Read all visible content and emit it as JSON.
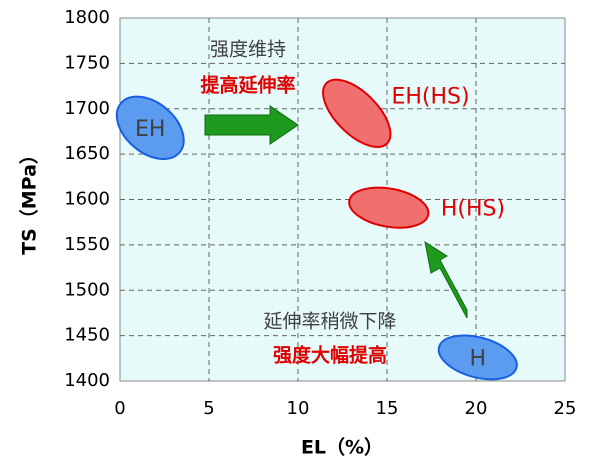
{
  "chart_data": {
    "type": "ellipse",
    "x_label": "EL（%）",
    "y_label": "TS（MPa）",
    "xlim": [
      0,
      25
    ],
    "xticks": [
      0,
      5,
      10,
      15,
      20,
      25
    ],
    "ylim": [
      1400,
      1800
    ],
    "yticks": [
      1400,
      1450,
      1500,
      1550,
      1600,
      1650,
      1700,
      1750,
      1800
    ],
    "grid": true,
    "background": "#e6fafa",
    "series": [
      {
        "name": "EH",
        "color": "#5b9bf0",
        "label_color": "#404040",
        "label_position": "center",
        "x": 1.7,
        "y": 1679,
        "width": 4.3,
        "height": 55,
        "angle": 40
      },
      {
        "name": "EH(HS)",
        "color": "#f07070",
        "label_color": "#e00000",
        "label_position": "upper-right",
        "x": 13.3,
        "y": 1695,
        "width": 4.8,
        "height": 46,
        "angle": 45
      },
      {
        "name": "H(HS)",
        "color": "#f07070",
        "label_color": "#e00000",
        "label_position": "right",
        "x": 15.1,
        "y": 1591,
        "width": 4.5,
        "height": 42,
        "angle": 10
      },
      {
        "name": "H",
        "color": "#5b9bf0",
        "label_color": "#404040",
        "label_position": "center",
        "x": 20.1,
        "y": 1426,
        "width": 4.5,
        "height": 44,
        "angle": 15
      }
    ],
    "annotations": [
      {
        "text": "强度维持",
        "color": "#404040"
      },
      {
        "text": "提高延伸率",
        "color": "#e00000"
      },
      {
        "text": "延伸率稍微下降",
        "color": "#404040"
      },
      {
        "text": "强度大幅提高",
        "color": "#e00000"
      }
    ]
  }
}
